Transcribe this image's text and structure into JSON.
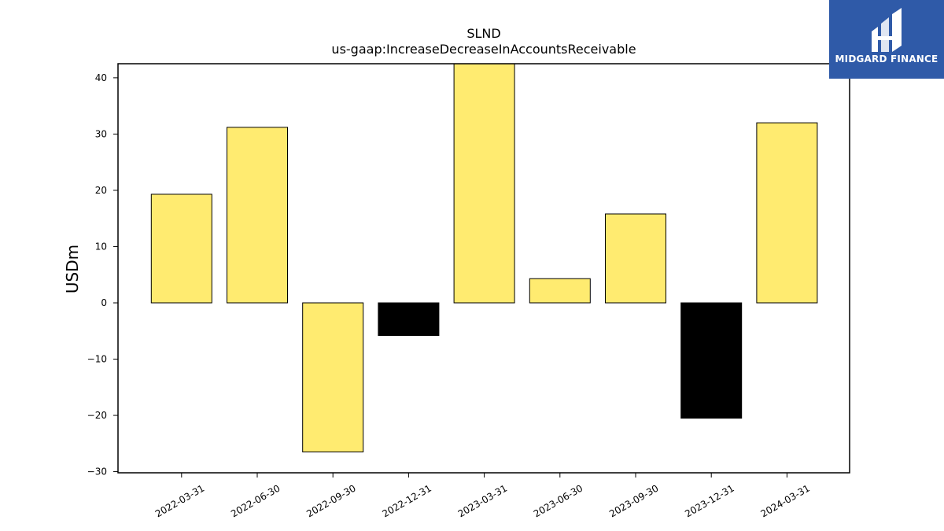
{
  "chart_data": {
    "type": "bar",
    "title": "SLND",
    "subtitle": "us-gaap:IncreaseDecreaseInAccountsReceivable",
    "ylabel": "USDm",
    "xlabel": "",
    "categories": [
      "2022-03-31",
      "2022-06-30",
      "2022-09-30",
      "2022-12-31",
      "2023-03-31",
      "2023-06-30",
      "2023-09-30",
      "2023-12-31",
      "2024-03-31"
    ],
    "values": [
      19.3,
      31.2,
      -26.5,
      -5.8,
      42.5,
      4.3,
      15.8,
      -20.5,
      32.0
    ],
    "bar_colors": [
      "#ffeb70",
      "#ffeb70",
      "#ffeb70",
      "#000000",
      "#ffeb70",
      "#ffeb70",
      "#ffeb70",
      "#000000",
      "#ffeb70"
    ],
    "ylim": [
      -30.2,
      42.5
    ],
    "yticks": [
      -30,
      -20,
      -10,
      0,
      10,
      20,
      30,
      40
    ],
    "grid": false
  },
  "brand": {
    "name": "MIDGARD FINANCE",
    "color": "#2f5aa8",
    "icon": "midgard-logo-icon"
  }
}
